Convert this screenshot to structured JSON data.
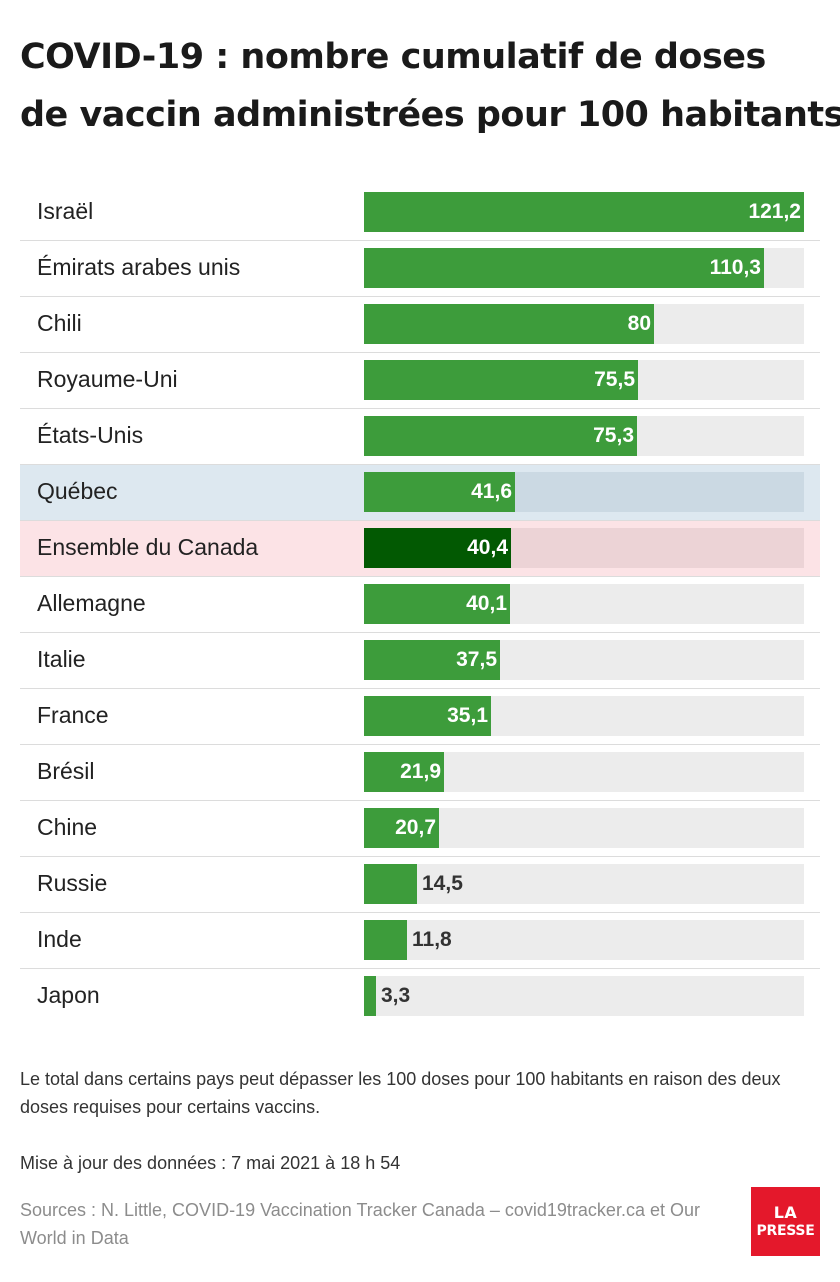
{
  "title_lines": [
    "COVID-19 : nombre cumulatif de doses",
    "de vaccin administrées pour 100 habitants"
  ],
  "chart_data": {
    "type": "bar",
    "orientation": "horizontal",
    "categories": [
      "Israël",
      "Émirats arabes unis",
      "Chili",
      "Royaume-Uni",
      "États-Unis",
      "Québec",
      "Ensemble du Canada",
      "Allemagne",
      "Italie",
      "France",
      "Brésil",
      "Chine",
      "Russie",
      "Inde",
      "Japon"
    ],
    "values": [
      121.2,
      110.3,
      80,
      75.5,
      75.3,
      41.6,
      40.4,
      40.1,
      37.5,
      35.1,
      21.9,
      20.7,
      14.5,
      11.8,
      3.3
    ],
    "value_labels": [
      "121,2",
      "110,3",
      "80",
      "75,5",
      "75,3",
      "41,6",
      "40,4",
      "40,1",
      "37,5",
      "35,1",
      "21,9",
      "20,7",
      "14,5",
      "11,8",
      "3,3"
    ],
    "xlim": [
      0,
      121.2
    ],
    "highlights": {
      "Québec": "blue",
      "Ensemble du Canada": "pink"
    },
    "colors": {
      "bar": "#3d9c3b",
      "bar_highlight": "#025902",
      "track": "#ececec",
      "quebec_bg": "#dde8f0",
      "canada_bg": "#fce3e6"
    }
  },
  "notes": [
    "Le total dans certains pays peut dépasser les 100 doses pour 100 habitants en raison des deux doses requises pour certains vaccins.",
    "Mise à jour des données : 7 mai 2021 à 18 h 54"
  ],
  "sources": "Sources : N. Little, COVID-19 Vaccination Tracker Canada – covid19tracker.ca et Our World in Data",
  "logo": {
    "line1": "LA",
    "line2": "PRESSE",
    "color": "#e4182b"
  }
}
